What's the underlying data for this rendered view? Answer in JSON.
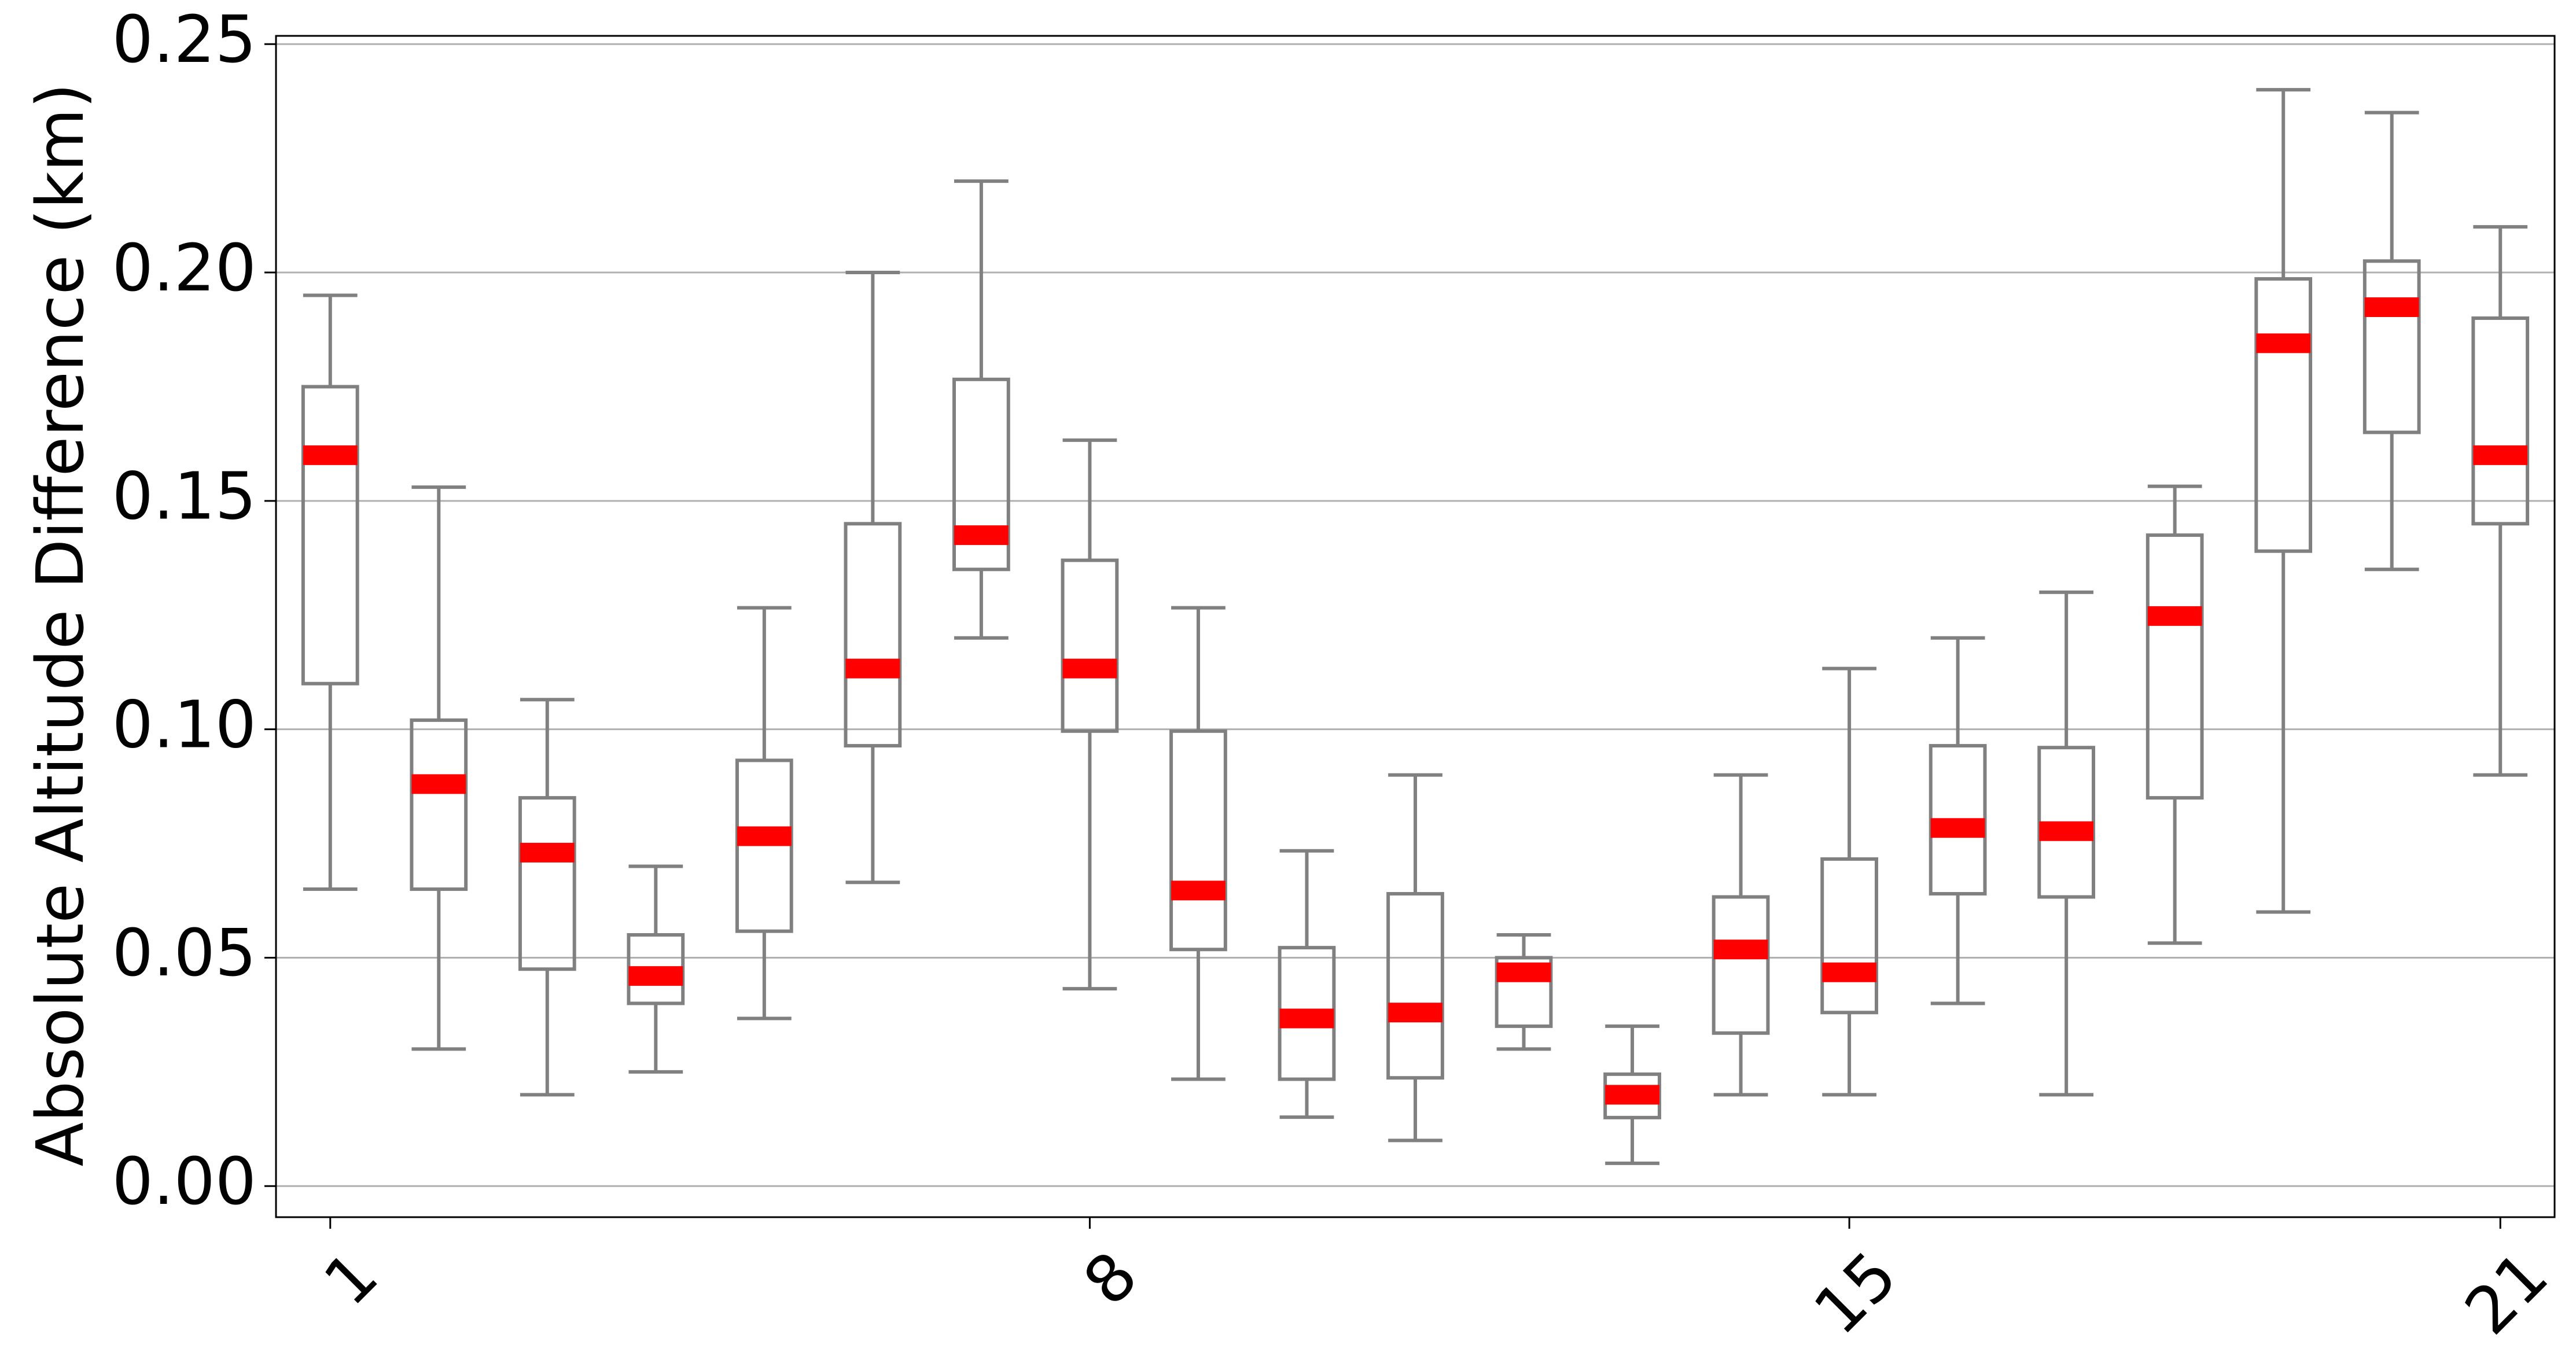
{
  "chart_data": {
    "type": "box",
    "ylabel": "Absolute Altitude Difference (km)",
    "categories": [
      "1",
      null,
      null,
      null,
      null,
      null,
      null,
      "8",
      null,
      null,
      null,
      null,
      null,
      null,
      "15",
      null,
      null,
      null,
      null,
      null,
      "21"
    ],
    "whisker_low": [
      0.065,
      0.03,
      0.02,
      0.025,
      0.0367,
      0.0665,
      0.12,
      0.0432,
      0.0234,
      0.0151,
      0.01,
      0.03,
      0.005,
      0.02,
      0.02,
      0.04,
      0.02,
      0.0532,
      0.06,
      0.135,
      0.09
    ],
    "q1": [
      0.11,
      0.065,
      0.0475,
      0.04,
      0.0558,
      0.0964,
      0.135,
      0.0996,
      0.0518,
      0.0234,
      0.0237,
      0.035,
      0.015,
      0.0335,
      0.038,
      0.064,
      0.0633,
      0.085,
      0.139,
      0.165,
      0.145
    ],
    "median": [
      0.16,
      0.088,
      0.073,
      0.046,
      0.0766,
      0.1133,
      0.1425,
      0.1133,
      0.0647,
      0.0367,
      0.038,
      0.0468,
      0.02,
      0.0518,
      0.0468,
      0.0784,
      0.0777,
      0.1248,
      0.1845,
      0.1924,
      0.16
    ],
    "q3": [
      0.175,
      0.102,
      0.085,
      0.055,
      0.0932,
      0.145,
      0.1766,
      0.137,
      0.0996,
      0.0522,
      0.064,
      0.05,
      0.0245,
      0.0633,
      0.0716,
      0.0964,
      0.096,
      0.1425,
      0.1986,
      0.2025,
      0.19
    ],
    "whisker_high": [
      0.195,
      0.153,
      0.1065,
      0.07,
      0.1266,
      0.2,
      0.22,
      0.1633,
      0.1266,
      0.0734,
      0.09,
      0.055,
      0.035,
      0.09,
      0.1133,
      0.12,
      0.13,
      0.1532,
      0.24,
      0.235,
      0.21
    ],
    "box_color": "#808080",
    "median_color": "#ff0000",
    "ylim": [
      -0.0068,
      0.2518
    ],
    "yticks": [
      {
        "value": 0,
        "label": "0.00"
      },
      {
        "value": 0.05,
        "label": "0.05"
      },
      {
        "value": 0.1,
        "label": "0.10"
      },
      {
        "value": 0.15,
        "label": "0.15"
      },
      {
        "value": 0.2,
        "label": "0.20"
      },
      {
        "value": 0.25,
        "label": "0.25"
      }
    ],
    "grid": true
  }
}
